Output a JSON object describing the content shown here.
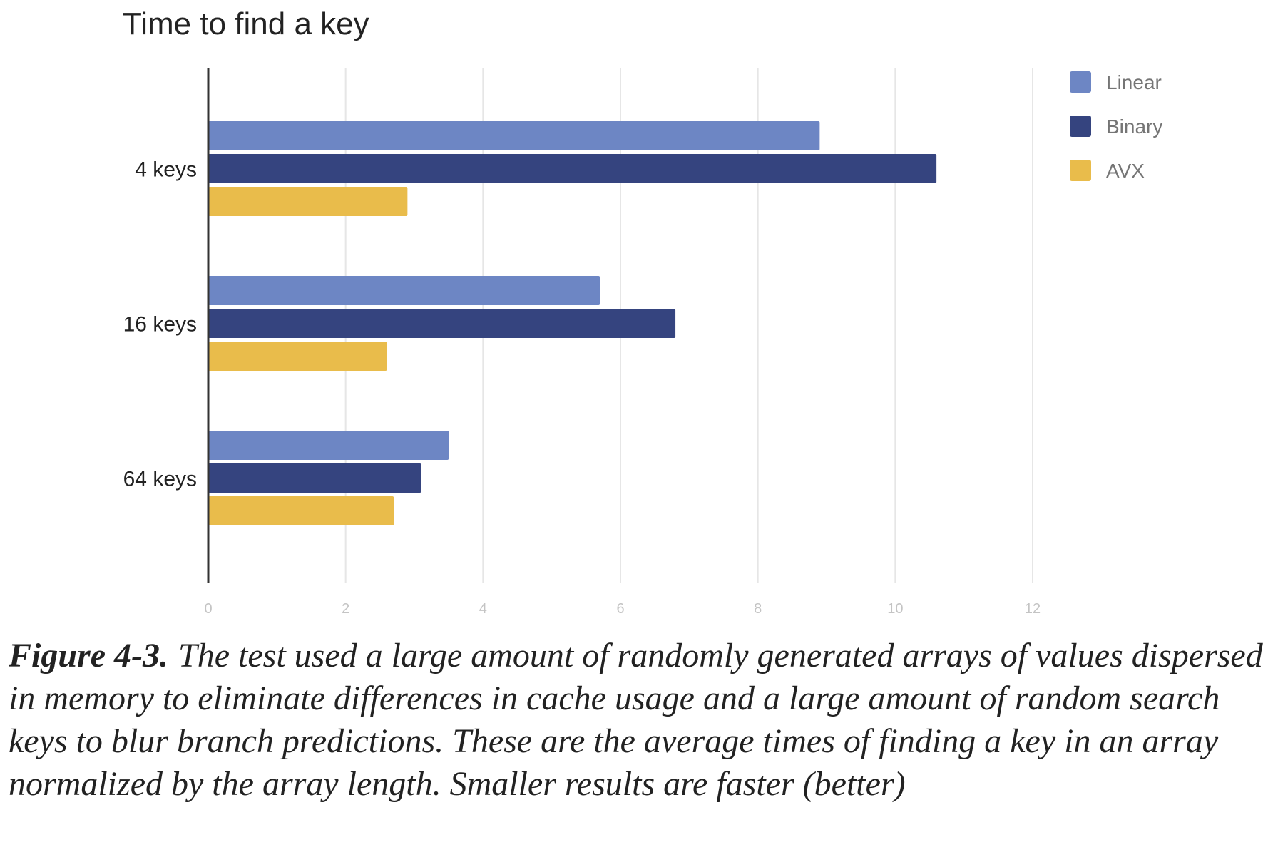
{
  "chart_data": {
    "type": "bar",
    "orientation": "horizontal",
    "title": "Time to find a key",
    "categories": [
      "4 keys",
      "16 keys",
      "64 keys"
    ],
    "series": [
      {
        "name": "Linear",
        "color": "#6d86c4",
        "values": [
          8.9,
          5.7,
          3.5
        ]
      },
      {
        "name": "Binary",
        "color": "#35447f",
        "values": [
          10.6,
          6.8,
          3.1
        ]
      },
      {
        "name": "AVX",
        "color": "#e9bc4b",
        "values": [
          2.9,
          2.6,
          2.7
        ]
      }
    ],
    "xticks": [
      "0",
      "2",
      "4",
      "6",
      "8",
      "10",
      "12"
    ],
    "xlim": [
      0,
      12
    ],
    "grid": true,
    "legend_position": "top-right"
  },
  "caption": {
    "label": "Figure 4-3.",
    "text": "The test used a large amount of randomly generated arrays of values dispersed in memory to eliminate differences in cache usage and a large amount of random search keys to blur branch predictions. These are the average times of finding a key in an array normalized by the array length. Smaller results are faster (better)"
  }
}
